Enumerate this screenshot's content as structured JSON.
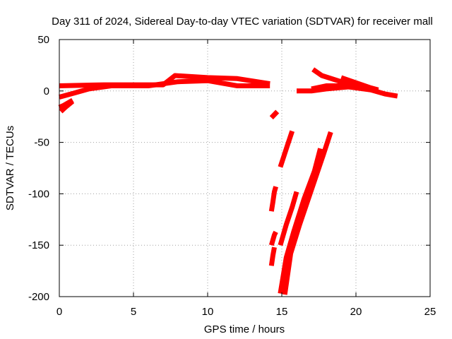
{
  "chart_data": {
    "type": "scatter",
    "title": "Day 311 of 2024, Sidereal Day-to-day VTEC variation (SDTVAR) for receiver mall",
    "xlabel": "GPS time / hours",
    "ylabel": "SDTVAR / TECUs",
    "xlim": [
      0,
      25
    ],
    "ylim": [
      -200,
      50
    ],
    "xticks": [
      0,
      5,
      10,
      15,
      20,
      25
    ],
    "xtick_labels": [
      "0",
      "5",
      "10",
      "15",
      "20",
      "25"
    ],
    "yticks": [
      -200,
      -150,
      -100,
      -50,
      0,
      50
    ],
    "ytick_labels": [
      "-200",
      "-150",
      "-100",
      "-50",
      "0",
      "50"
    ],
    "grid": true,
    "marker": "+",
    "color": "#ff0000",
    "series": [
      {
        "name": "track-1",
        "points": [
          [
            0,
            5
          ],
          [
            3,
            6
          ],
          [
            7,
            6
          ],
          [
            7.8,
            15
          ],
          [
            10,
            13
          ],
          [
            12,
            12
          ],
          [
            14.2,
            7
          ]
        ]
      },
      {
        "name": "track-2",
        "points": [
          [
            0,
            -6
          ],
          [
            1,
            -2
          ],
          [
            2,
            2
          ],
          [
            3.5,
            5
          ],
          [
            6,
            5
          ],
          [
            8,
            9
          ],
          [
            10,
            10
          ],
          [
            12,
            5
          ],
          [
            14.2,
            5
          ]
        ]
      },
      {
        "name": "track-3",
        "points": [
          [
            0,
            -16
          ],
          [
            0.3,
            -14
          ],
          [
            0.9,
            -9
          ]
        ]
      },
      {
        "name": "track-4",
        "points": [
          [
            0.1,
            -20
          ],
          [
            0.4,
            -16
          ],
          [
            0.9,
            -10
          ]
        ]
      },
      {
        "name": "track-5",
        "points": [
          [
            14.3,
            -26
          ],
          [
            14.7,
            -20
          ]
        ]
      },
      {
        "name": "track-6",
        "points": [
          [
            14.3,
            -117
          ],
          [
            14.4,
            -108
          ],
          [
            14.5,
            -98
          ],
          [
            14.6,
            -93
          ]
        ]
      },
      {
        "name": "track-7",
        "points": [
          [
            14.3,
            -150
          ],
          [
            14.5,
            -140
          ],
          [
            14.6,
            -137
          ]
        ]
      },
      {
        "name": "track-8",
        "points": [
          [
            14.3,
            -170
          ],
          [
            14.4,
            -160
          ],
          [
            14.5,
            -152
          ]
        ]
      },
      {
        "name": "track-9",
        "points": [
          [
            14.9,
            -74
          ],
          [
            15.4,
            -52
          ],
          [
            15.7,
            -39
          ]
        ]
      },
      {
        "name": "track-10",
        "points": [
          [
            14.9,
            -150
          ],
          [
            15.3,
            -130
          ],
          [
            15.7,
            -113
          ],
          [
            16.0,
            -98
          ]
        ]
      },
      {
        "name": "track-11",
        "points": [
          [
            14.9,
            -197
          ],
          [
            15.3,
            -162
          ],
          [
            15.8,
            -137
          ],
          [
            16.5,
            -105
          ],
          [
            17.2,
            -78
          ],
          [
            17.6,
            -56
          ]
        ]
      },
      {
        "name": "track-12",
        "points": [
          [
            15.2,
            -198
          ],
          [
            15.6,
            -158
          ],
          [
            16.2,
            -130
          ],
          [
            17.0,
            -96
          ],
          [
            17.8,
            -62
          ],
          [
            18.3,
            -40
          ]
        ]
      },
      {
        "name": "track-13",
        "points": [
          [
            16.0,
            0
          ],
          [
            17.0,
            0
          ],
          [
            18.0,
            2
          ],
          [
            19.5,
            4
          ],
          [
            21.0,
            1
          ],
          [
            22.0,
            -3
          ],
          [
            22.8,
            -5
          ]
        ]
      },
      {
        "name": "track-14",
        "points": [
          [
            17.0,
            2
          ],
          [
            18.0,
            5
          ],
          [
            19.5,
            5
          ],
          [
            21.5,
            0
          ]
        ]
      },
      {
        "name": "track-15",
        "points": [
          [
            17.1,
            21
          ],
          [
            17.7,
            15
          ],
          [
            19.0,
            9
          ],
          [
            20.5,
            3
          ],
          [
            21.5,
            0
          ]
        ]
      },
      {
        "name": "track-16",
        "points": [
          [
            19.0,
            13
          ],
          [
            20.0,
            8
          ],
          [
            21.0,
            3
          ],
          [
            21.5,
            1
          ]
        ]
      },
      {
        "name": "track-17",
        "points": [
          [
            20.3,
            5
          ],
          [
            20.8,
            2
          ],
          [
            21.5,
            1
          ]
        ]
      }
    ]
  }
}
